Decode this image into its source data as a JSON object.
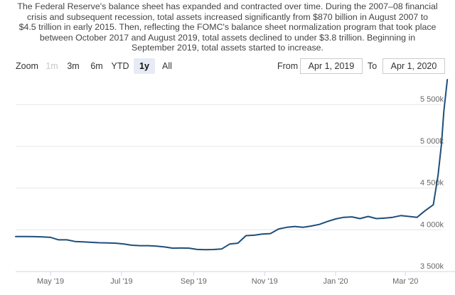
{
  "description": {
    "lines": [
      "The Federal Reserve's balance sheet has expanded and contracted over time. During the 2007–08 financial",
      "crisis and subsequent recession, total assets increased significantly from $870 billion in August 2007 to",
      "$4.5 trillion in early 2015. Then, reflecting the FOMC's balance sheet normalization program that took place",
      "between October 2017 and August 2019, total assets declined to under $3.8 trillion. Beginning in",
      "September 2019, total assets started to increase."
    ]
  },
  "range_selector": {
    "zoom_label": "Zoom",
    "buttons": [
      {
        "label": "1m",
        "state": "disabled"
      },
      {
        "label": "3m",
        "state": "normal"
      },
      {
        "label": "6m",
        "state": "normal"
      },
      {
        "label": "YTD",
        "state": "normal"
      },
      {
        "label": "1y",
        "state": "selected"
      },
      {
        "label": "All",
        "state": "normal"
      }
    ],
    "from_label": "From",
    "from_value": "Apr 1, 2019",
    "to_label": "To",
    "to_value": "Apr 1, 2020"
  },
  "colors": {
    "line": "#1f4e79",
    "grid": "#e6e6e6",
    "axis": "#ccd6eb"
  },
  "chart_data": {
    "type": "line",
    "title": "",
    "xlabel": "",
    "ylabel": "",
    "x_range": [
      "2019-04-01",
      "2020-04-01"
    ],
    "ylim": [
      3500,
      5800
    ],
    "y_ticks": [
      {
        "value": 3500,
        "label": "3 500k"
      },
      {
        "value": 4000,
        "label": "4 000k"
      },
      {
        "value": 4500,
        "label": "4 500k"
      },
      {
        "value": 5000,
        "label": "5 000k"
      },
      {
        "value": 5500,
        "label": "5 500k"
      }
    ],
    "x_ticks": [
      {
        "date": "2019-05-01",
        "label": "May '19"
      },
      {
        "date": "2019-07-01",
        "label": "Jul '19"
      },
      {
        "date": "2019-09-01",
        "label": "Sep '19"
      },
      {
        "date": "2019-11-01",
        "label": "Nov '19"
      },
      {
        "date": "2020-01-01",
        "label": "Jan '20"
      },
      {
        "date": "2020-03-01",
        "label": "Mar '20"
      }
    ],
    "grid": "horizontal",
    "series": [
      {
        "points": [
          [
            "2019-04-01",
            3920
          ],
          [
            "2019-04-10",
            3920
          ],
          [
            "2019-04-17",
            3918
          ],
          [
            "2019-04-24",
            3915
          ],
          [
            "2019-05-01",
            3910
          ],
          [
            "2019-05-08",
            3880
          ],
          [
            "2019-05-15",
            3880
          ],
          [
            "2019-05-22",
            3860
          ],
          [
            "2019-05-29",
            3855
          ],
          [
            "2019-06-05",
            3850
          ],
          [
            "2019-06-12",
            3845
          ],
          [
            "2019-06-19",
            3843
          ],
          [
            "2019-06-26",
            3840
          ],
          [
            "2019-07-03",
            3830
          ],
          [
            "2019-07-10",
            3815
          ],
          [
            "2019-07-17",
            3810
          ],
          [
            "2019-07-24",
            3810
          ],
          [
            "2019-07-31",
            3805
          ],
          [
            "2019-08-07",
            3795
          ],
          [
            "2019-08-14",
            3780
          ],
          [
            "2019-08-21",
            3782
          ],
          [
            "2019-08-28",
            3780
          ],
          [
            "2019-09-04",
            3765
          ],
          [
            "2019-09-11",
            3762
          ],
          [
            "2019-09-18",
            3764
          ],
          [
            "2019-09-25",
            3770
          ],
          [
            "2019-10-02",
            3830
          ],
          [
            "2019-10-09",
            3840
          ],
          [
            "2019-10-16",
            3930
          ],
          [
            "2019-10-23",
            3935
          ],
          [
            "2019-10-30",
            3950
          ],
          [
            "2019-11-06",
            3955
          ],
          [
            "2019-11-13",
            4010
          ],
          [
            "2019-11-20",
            4030
          ],
          [
            "2019-11-27",
            4040
          ],
          [
            "2019-12-04",
            4030
          ],
          [
            "2019-12-11",
            4045
          ],
          [
            "2019-12-18",
            4065
          ],
          [
            "2019-12-25",
            4100
          ],
          [
            "2020-01-01",
            4130
          ],
          [
            "2020-01-08",
            4150
          ],
          [
            "2020-01-15",
            4155
          ],
          [
            "2020-01-22",
            4135
          ],
          [
            "2020-01-29",
            4160
          ],
          [
            "2020-02-05",
            4135
          ],
          [
            "2020-02-12",
            4140
          ],
          [
            "2020-02-19",
            4150
          ],
          [
            "2020-02-26",
            4170
          ],
          [
            "2020-03-04",
            4160
          ],
          [
            "2020-03-11",
            4150
          ],
          [
            "2020-03-18",
            4230
          ],
          [
            "2020-03-25",
            4300
          ],
          [
            "2020-03-29",
            4650
          ],
          [
            "2020-04-01",
            5030
          ],
          [
            "2020-04-03",
            5420
          ],
          [
            "2020-04-06",
            5800
          ]
        ]
      }
    ]
  }
}
